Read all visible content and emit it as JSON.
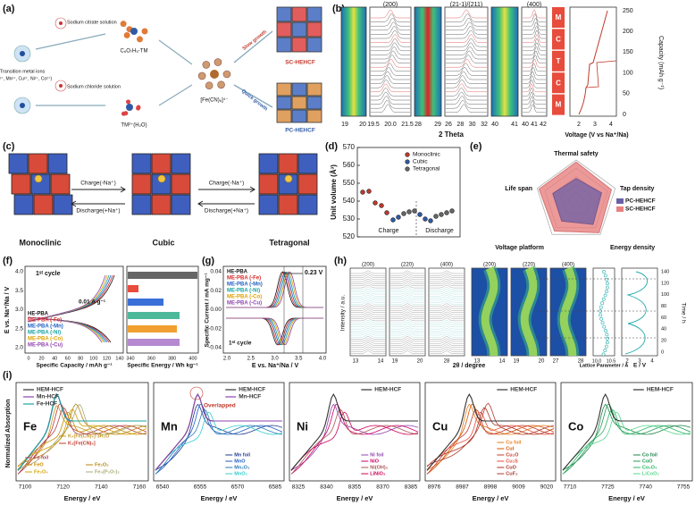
{
  "a": {
    "label": "(a)",
    "ions": "Transition metal ions",
    "ions_list": "(Fe²⁺, Mn²⁺, Cu²⁺, Ni²⁺, Co²⁺)",
    "citrate": "Sodium citrate solution",
    "chloride": "Sodium chloride solution",
    "complex": "C₆O₇H₅-TM",
    "aquo": "TM²⁺(H₂O)",
    "fecn": "[Fe(CN)₆]⁴⁻",
    "slow": "Slow growth",
    "quick": "Quick growth",
    "sc": "SC-HEHCF",
    "pc": "PC-HEHCF"
  },
  "b": {
    "label": "(b)",
    "peaks": [
      "(200)",
      "(21-1)/(211)",
      "(400)"
    ],
    "xticks": [
      [
        "19",
        "20"
      ],
      [
        "19.5",
        "20.0",
        "21.5"
      ],
      [
        "28",
        "29"
      ],
      [
        "26",
        "28",
        "30",
        "32"
      ],
      [
        "40",
        "41"
      ],
      [
        "40",
        "41",
        "42"
      ]
    ],
    "xlabel": "2 Theta",
    "phases": [
      "M",
      "C",
      "T",
      "C",
      "M"
    ],
    "yticks": [
      "0",
      "50",
      "100",
      "150",
      "200",
      "250"
    ],
    "ylabel": "Capacity (mAh g⁻¹)",
    "vticks": [
      "2",
      "3",
      "4"
    ],
    "vlabel": "Voltage (V vs Na⁺/Na)"
  },
  "c": {
    "label": "(c)",
    "phases": [
      "Monoclinic",
      "Cubic",
      "Tetragonal"
    ],
    "charge": "Charge(-Na⁺)",
    "discharge": "Discharge(+Na⁺)"
  },
  "d": {
    "label": "(d)",
    "ylabel": "Unit volume (Å³)",
    "yticks": [
      "570",
      "560",
      "550",
      "540",
      "530",
      "520"
    ],
    "legend": [
      "Monoclinic",
      "Cubic",
      "Tetragonal"
    ],
    "charge": "Charge",
    "discharge": "Discharge"
  },
  "e": {
    "label": "(e)",
    "axes": [
      "Thermal safety",
      "Tap density",
      "Energy density",
      "Voltage platform",
      "Life span"
    ],
    "legend": [
      "PC-HEHCF",
      "SC-HEHCF"
    ]
  },
  "f": {
    "label": "(f)",
    "cycle": "1ˢᵗ cycle",
    "rate": "0.01 A g⁻¹",
    "legend": [
      "HE-PBA",
      "ME-PBA (-Fe)",
      "ME-PBA (-Mn)",
      "ME-PBA (-Ni)",
      "ME-PBA (-Co)",
      "ME-PBA (-Cu)"
    ],
    "ylabel": "E vs. Na⁺/Na / V",
    "yticks": [
      "4.0",
      "3.5",
      "3.0",
      "2.5",
      "2.0"
    ],
    "xticks": [
      "0",
      "20",
      "40",
      "60",
      "80",
      "100",
      "120",
      "140"
    ],
    "xlabel": "Specific Capacity / mAh g⁻¹",
    "eticks": [
      "340",
      "360",
      "380",
      "400"
    ],
    "elabel": "Specific Energy / Wh kg⁻¹"
  },
  "g": {
    "label": "(g)",
    "shift": "0.23 V",
    "cycle": "1ˢᵗ cycle",
    "ylabel": "Specific Current / mA mg⁻¹",
    "yticks": [
      "0.04",
      "0.02",
      "0.00",
      "-0.02",
      "-0.04"
    ],
    "xticks": [
      "2.0",
      "2.5",
      "3.0",
      "3.5",
      "4.0"
    ],
    "xlabel": "E vs. Na⁺/Na / V"
  },
  "h": {
    "label": "(h)",
    "peaks": [
      "(200)",
      "(220)",
      "(400)",
      "(200)",
      "(220)",
      "(400)"
    ],
    "xticks": [
      [
        "13",
        "14"
      ],
      [
        "19",
        "20"
      ],
      [
        "28"
      ],
      [
        "13",
        "14"
      ],
      [
        "19",
        "20"
      ],
      [
        "27",
        "28"
      ]
    ],
    "ylabel": "Intensity / a.u.",
    "xlabel": "2θ / degree",
    "lattice": "Lattice Parameter / Å",
    "lticks": [
      "10.0",
      "10.5"
    ],
    "elabel": "E / V",
    "eticks": [
      "2",
      "3",
      "4"
    ],
    "tlabel": "Time / h",
    "tticks": [
      "140",
      "120",
      "100",
      "80",
      "60",
      "40",
      "20",
      "0"
    ]
  },
  "i": {
    "label": "(i)",
    "ylabel": "Normalized Absorption",
    "xlabel": "Energy / eV",
    "panels": [
      {
        "element": "Fe",
        "legend": [
          "HEM-HCF",
          "Mn-HCF",
          "Fe-HCF"
        ],
        "refs": [
          "K₄[Fe(CN)₆]·3H₂O",
          "K₃[Fe(CN)₆]",
          "Fe foil",
          "FeO",
          "Fe₃O₄",
          "Fe₂O₃",
          "Fe₄(P₂O₇)₃"
        ],
        "xticks": [
          "7100",
          "7120",
          "7140",
          "7160"
        ]
      },
      {
        "element": "Mn",
        "legend": [
          "HEM-HCF",
          "Mn-HCF"
        ],
        "refs": [
          "Mn foil",
          "MnO",
          "Mn₂O₃",
          "MnO₂"
        ],
        "note": "Overlapped",
        "xticks": [
          "6540",
          "6555",
          "6570",
          "6585"
        ]
      },
      {
        "element": "Ni",
        "legend": [
          "HEM-HCF"
        ],
        "refs": [
          "Ni foil",
          "NiO",
          "Ni(OH)₂",
          "LiNiO₂"
        ],
        "xticks": [
          "8325",
          "8340",
          "8355",
          "8370",
          "8385"
        ]
      },
      {
        "element": "Cu",
        "legend": [
          "HEM-HCF"
        ],
        "refs": [
          "Cu foil",
          "CuI",
          "Cu₂O",
          "Cu₂S",
          "CuO",
          "CuF₂"
        ],
        "xticks": [
          "8976",
          "8987",
          "8998",
          "9009",
          "9020"
        ]
      },
      {
        "element": "Co",
        "legend": [
          "HEM-HCF"
        ],
        "refs": [
          "Co foil",
          "CoO",
          "Co₃O₄",
          "LiCoO₂"
        ],
        "xticks": [
          "7710",
          "7725",
          "7740",
          "7755"
        ]
      }
    ]
  }
}
